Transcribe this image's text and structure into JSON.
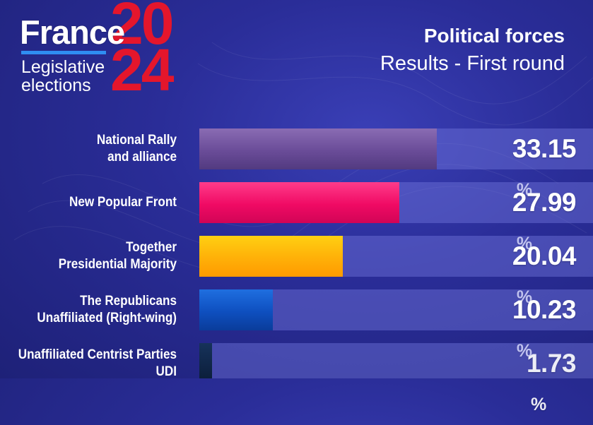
{
  "logo": {
    "brand": "France",
    "subtitle_line1": "Legislative",
    "subtitle_line2": "elections",
    "year_top": "20",
    "year_bottom": "24",
    "colors": {
      "brand_red": "#e4162c",
      "accent_blue": "#2f8df2"
    }
  },
  "heading": {
    "title": "Political forces",
    "subtitle": "Results - First round"
  },
  "chart_data": {
    "type": "bar",
    "orientation": "horizontal",
    "unit": "%",
    "xlim": [
      0,
      55
    ],
    "categories": [
      [
        "National Rally",
        "and alliance"
      ],
      [
        "New Popular Front"
      ],
      [
        "Together",
        "Presidential Majority"
      ],
      [
        "The Republicans",
        "Unaffiliated (Right-wing)"
      ],
      [
        "Unaffiliated Centrist Parties",
        "UDI"
      ]
    ],
    "values": [
      33.15,
      27.99,
      20.04,
      10.23,
      1.73
    ],
    "value_labels": [
      "33.15",
      "27.99",
      "20.04",
      "10.23",
      "1.73"
    ],
    "colors": [
      "#6a4c98",
      "#f00a64",
      "#ffb008",
      "#0e4fbf",
      "#0c1f3c"
    ]
  }
}
